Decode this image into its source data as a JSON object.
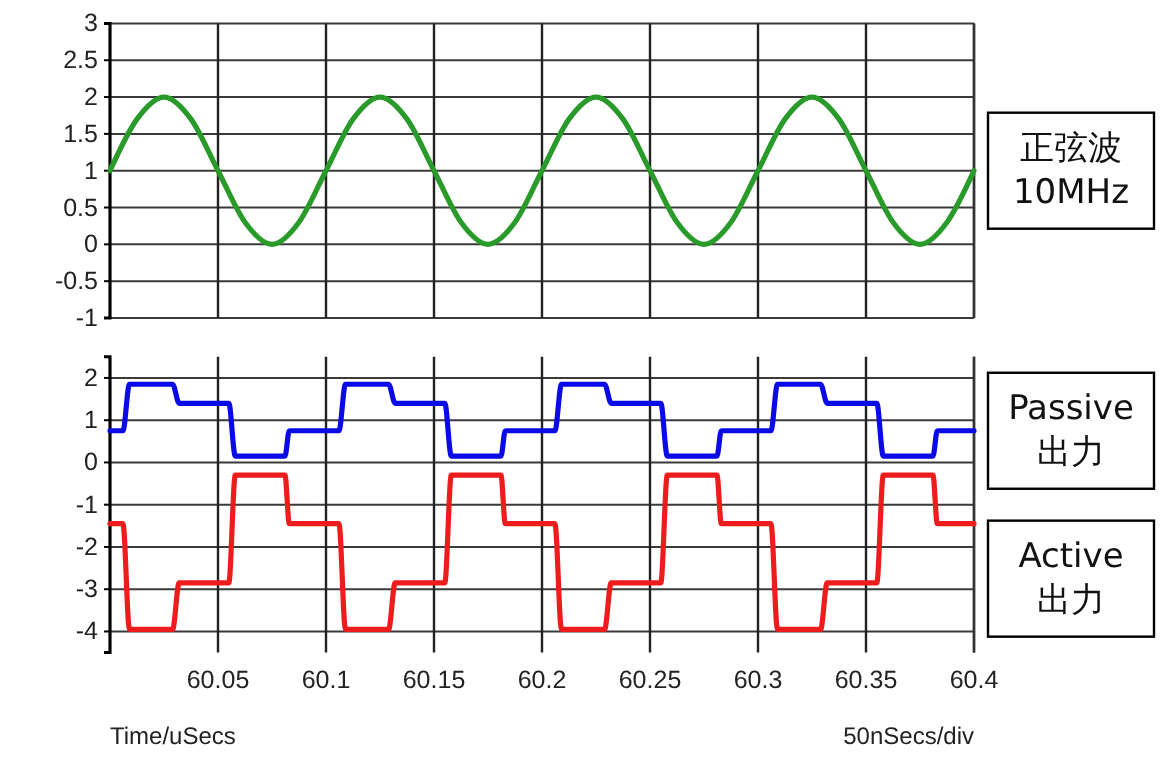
{
  "chart_data": [
    {
      "type": "line",
      "xlim": [
        60,
        60.4
      ],
      "xticks": [
        60,
        60.05,
        60.1,
        60.15,
        60.2,
        60.25,
        60.3,
        60.35,
        60.4
      ],
      "ylim": [
        -1,
        3
      ],
      "yticks": [
        -1,
        -0.5,
        0,
        0.5,
        1,
        1.5,
        2,
        2.5,
        3
      ],
      "tick_labels": "y",
      "grid": true,
      "legend": "right",
      "x": [
        60,
        60.0125,
        60.025,
        60.0375,
        60.05,
        60.0625,
        60.075,
        60.0875,
        60.1,
        60.1125,
        60.125,
        60.1375,
        60.15,
        60.1625,
        60.175,
        60.1875,
        60.2,
        60.2125,
        60.225,
        60.2375,
        60.25,
        60.2625,
        60.275,
        60.2875,
        60.3,
        60.3125,
        60.325,
        60.3375,
        60.35,
        60.3625,
        60.375,
        60.3875,
        60.4
      ],
      "series": [
        {
          "name": "正弦波 10MHz",
          "color": "#2a9a2a",
          "values": [
            1,
            1.7,
            2,
            1.7,
            1,
            0.3,
            0,
            0.3,
            1,
            1.7,
            2,
            1.7,
            1,
            0.3,
            0,
            0.3,
            1,
            1.7,
            2,
            1.7,
            1,
            0.3,
            0,
            0.3,
            1,
            1.7,
            2,
            1.7,
            1,
            0.3,
            0,
            0.3,
            1
          ]
        }
      ]
    },
    {
      "type": "line",
      "xlim": [
        60,
        60.4
      ],
      "xticks": [
        {
          "value": 60,
          "label": null
        },
        60.05,
        60.1,
        60.15,
        60.2,
        60.25,
        60.3,
        60.35,
        60.4
      ],
      "ylim": [
        -4.5,
        2.5
      ],
      "yticks": [
        -4,
        -3,
        -2,
        -1,
        0,
        1,
        2
      ],
      "grid": true,
      "legend": "right",
      "xlabel": "Time/uSecs",
      "annotations": [
        "50nSecs/div"
      ],
      "series": [
        {
          "name": "Passive 出力",
          "color": "#0a0ae6",
          "x": [
            60,
            60.006,
            60.009,
            60.029,
            60.032,
            60.055,
            60.058,
            60.081,
            60.083,
            60.106,
            60.109,
            60.129,
            60.132,
            60.155,
            60.158,
            60.181,
            60.183,
            60.206,
            60.209,
            60.229,
            60.232,
            60.255,
            60.258,
            60.281,
            60.283,
            60.306,
            60.309,
            60.329,
            60.332,
            60.355,
            60.358,
            60.381,
            60.383,
            60.4
          ],
          "values": [
            0.75,
            0.75,
            1.85,
            1.85,
            1.4,
            1.4,
            0.15,
            0.15,
            0.75,
            0.75,
            1.85,
            1.85,
            1.4,
            1.4,
            0.15,
            0.15,
            0.75,
            0.75,
            1.85,
            1.85,
            1.4,
            1.4,
            0.15,
            0.15,
            0.75,
            0.75,
            1.85,
            1.85,
            1.4,
            1.4,
            0.15,
            0.15,
            0.75,
            0.75
          ]
        },
        {
          "name": "Active 出力",
          "color": "#ee1c1c",
          "x": [
            60,
            60.006,
            60.009,
            60.029,
            60.032,
            60.055,
            60.058,
            60.081,
            60.083,
            60.106,
            60.109,
            60.129,
            60.132,
            60.155,
            60.158,
            60.181,
            60.183,
            60.206,
            60.209,
            60.229,
            60.232,
            60.255,
            60.258,
            60.281,
            60.283,
            60.306,
            60.309,
            60.329,
            60.332,
            60.355,
            60.358,
            60.381,
            60.383,
            60.4
          ],
          "values": [
            -1.45,
            -1.45,
            -3.95,
            -3.95,
            -2.85,
            -2.85,
            -0.3,
            -0.3,
            -1.45,
            -1.45,
            -3.95,
            -3.95,
            -2.85,
            -2.85,
            -0.3,
            -0.3,
            -1.45,
            -1.45,
            -3.95,
            -3.95,
            -2.85,
            -2.85,
            -0.3,
            -0.3,
            -1.45,
            -1.45,
            -3.95,
            -3.95,
            -2.85,
            -2.85,
            -0.3,
            -0.3,
            -1.45,
            -1.45
          ]
        }
      ]
    }
  ]
}
